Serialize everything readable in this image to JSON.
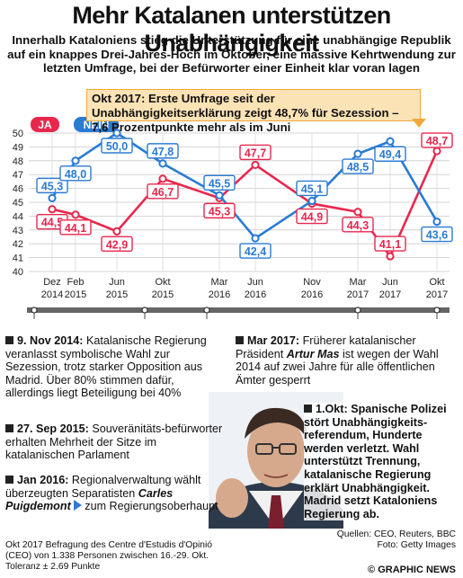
{
  "header": {
    "title": "Mehr Katalanen unterstützen Unabhängigkeit",
    "subtitle": "Innerhalb Kataloniens stieg die Unterstützung für eine unabhängige Republik auf ein knappes Drei-Jahres-Hoch im Oktober, eine massive Kehrtwendung zur letzten Umfrage, bei der Befürworter einer Einheit klar voran lagen"
  },
  "callout": {
    "text": "Okt 2017: Erste Umfrage seit der Unabhängigkeitserklärung zeigt 48,7% für Sezession – 7,6 Prozentpunkte mehr als im Juni"
  },
  "colors": {
    "ja": "#e8274d",
    "nein": "#2a7bd4",
    "callout_fill": "#fbe3b6",
    "callout_border": "#f0a93a",
    "timeline": "#666666"
  },
  "chart_data": {
    "type": "line",
    "x": [
      "Dez 2014",
      "Feb 2015",
      "Jun 2015",
      "Okt 2015",
      "Mar 2016",
      "Jun 2016",
      "Nov 2016",
      "Mar 2017",
      "Jun 2017",
      "Okt 2017"
    ],
    "x_labels": [
      [
        "Dez",
        "2014"
      ],
      [
        "Feb",
        "2015"
      ],
      [
        "Jun",
        "2015"
      ],
      [
        "Okt",
        "2015"
      ],
      [
        "Mar",
        "2016"
      ],
      [
        "Jun",
        "2016"
      ],
      [
        "Nov",
        "2016"
      ],
      [
        "Mar",
        "2017"
      ],
      [
        "Jun",
        "2017"
      ],
      [
        "Okt",
        "2017"
      ]
    ],
    "series": [
      {
        "name": "JA",
        "color": "#e8274d",
        "values": [
          44.5,
          44.1,
          42.9,
          46.7,
          45.3,
          47.7,
          44.9,
          44.3,
          41.1,
          48.7
        ],
        "labels": [
          "44,5",
          "44,1",
          "42,9",
          "46,7",
          "45,3",
          "47,7",
          "44,9",
          "44,3",
          "41,1",
          "48,7"
        ]
      },
      {
        "name": "NEIN",
        "color": "#2a7bd4",
        "values": [
          45.3,
          48.0,
          50.0,
          47.8,
          45.5,
          42.4,
          45.1,
          48.5,
          49.4,
          43.6
        ],
        "labels": [
          "45,3",
          "48,0",
          "50,0",
          "47,8",
          "45,5",
          "42,4",
          "45,1",
          "48,5",
          "49,4",
          "43,6"
        ]
      }
    ],
    "yticks": [
      "40",
      "41",
      "42",
      "43",
      "44",
      "45",
      "46",
      "47",
      "48",
      "49",
      "50"
    ],
    "ylim": [
      40,
      50
    ],
    "grid": true,
    "legend": "top-left"
  },
  "events": [
    {
      "date": "9. Nov 2014:",
      "text": "Katalanische Regierung veranlasst symbolische Wahl zur Sezession, trotz starker Opposition aus Madrid. Über 80% stimmen dafür, allerdings liegt Beteiligung bei 40%"
    },
    {
      "date": "27. Sep 2015:",
      "text": "Souveränitäts-befürworter erhalten Mehrheit der Sitze im katalanischen Parlament"
    },
    {
      "date": "Jan 2016:",
      "text_before": "Regionalverwaltung wählt überzeugten Separatisten",
      "actor": "Carles Puigdemont",
      "text_after": "zum Regierungsoberhaupt"
    },
    {
      "date": "Mar 2017:",
      "text_before": "Früherer katalanischer Präsident",
      "actor": "Artur Mas",
      "text_after": "ist wegen der Wahl 2014 auf zwei Jahre für alle öffentlichen Ämter gesperrt"
    },
    {
      "date": "1.Okt:",
      "text": "Spanische Polizei stört Unabhängigkeits-referendum, Hunderte werden verletzt. Wahl unterstützt Trennung, katalanische Regierung erklärt Unabhängigkeit. Madrid setzt Kataloniens Regierung ab."
    }
  ],
  "footer": {
    "note_lines": [
      "Okt 2017 Befragung des Centre d'Estudis d'Opinió",
      "(CEO) von 1.338 Personen zwischen 16.-29. Okt.",
      "Toleranz ± 2.69 Punkte"
    ],
    "source_lines": [
      "Quellen: CEO, Reuters, BBC",
      "Foto: Getty Images"
    ],
    "brand": "© GRAPHIC NEWS"
  }
}
